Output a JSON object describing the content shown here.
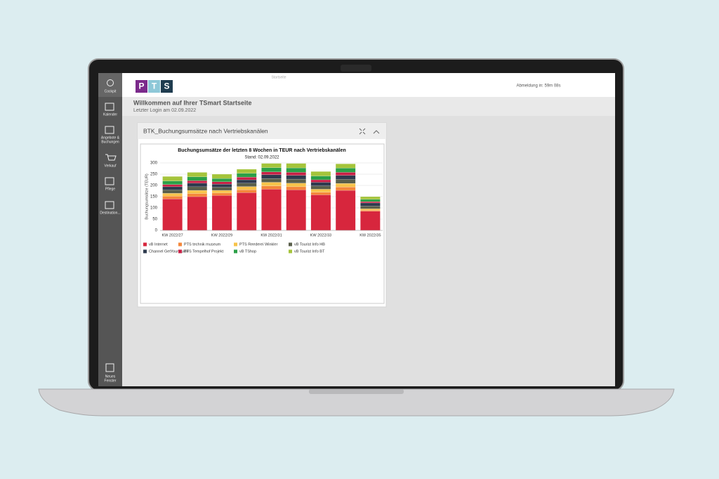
{
  "app": {
    "tab_title": "Startseite",
    "logo": [
      "P",
      "T",
      "S"
    ],
    "session": "Abmeldung in: 59m 08s",
    "welcome": "Willkommen auf Ihrer TSmart Startseite",
    "last_login": "Letzter Login am 02.09.2022",
    "nav": [
      "Cockpit",
      "Kalender",
      "Angebote &",
      "Buchungen",
      "Verkauf",
      "Pflege",
      "Destination...",
      "Neues",
      "Fenster"
    ],
    "panel_title": "BTK_Buchungsumsätze nach Vertriebskanälen"
  },
  "chart_data": {
    "type": "bar",
    "stacked": true,
    "title": "Buchungsumsätze der letzten 8 Wochen in TEUR nach Vertriebskanälen",
    "subtitle": "Stand: 02.09.2022",
    "y_label": "Buchungsumsätze (TEUR)",
    "categories": [
      "KW 2022/27",
      null,
      "KW 2022/29",
      null,
      "KW 2022/31",
      null,
      "KW 2022/33",
      null,
      "KW 2022/35"
    ],
    "ylim": [
      0,
      300
    ],
    "yticks": [
      0,
      50,
      100,
      150,
      200,
      250,
      300
    ],
    "grid": true,
    "series": [
      {
        "name": "vB Internet",
        "color": "#d7263d",
        "values": [
          140,
          150,
          155,
          168,
          183,
          180,
          158,
          178,
          85
        ]
      },
      {
        "name": "PTS technik museum",
        "color": "#f4873a",
        "values": [
          12,
          14,
          11,
          13,
          15,
          14,
          12,
          15,
          5
        ]
      },
      {
        "name": "PTS Reederei Winkler",
        "color": "#f7c34a",
        "values": [
          13,
          14,
          12,
          14,
          16,
          16,
          13,
          16,
          6
        ]
      },
      {
        "name": "vB Tourist Info HB",
        "color": "#5a5f4b",
        "values": [
          15,
          16,
          14,
          15,
          17,
          18,
          15,
          18,
          12
        ]
      },
      {
        "name": "Channel GetYourGuide",
        "color": "#2e3a4e",
        "values": [
          14,
          16,
          14,
          15,
          17,
          17,
          16,
          18,
          14
        ]
      },
      {
        "name": "PTS Tempelhof Projekt",
        "color": "#c81f45",
        "values": [
          10,
          11,
          10,
          12,
          12,
          13,
          11,
          13,
          6
        ]
      },
      {
        "name": "vB TShop",
        "color": "#2ca048",
        "values": [
          16,
          17,
          15,
          17,
          19,
          20,
          17,
          19,
          10
        ]
      },
      {
        "name": "vB Tourist Info BT",
        "color": "#a5c43b",
        "values": [
          20,
          20,
          19,
          18,
          19,
          20,
          20,
          19,
          12
        ]
      }
    ]
  }
}
